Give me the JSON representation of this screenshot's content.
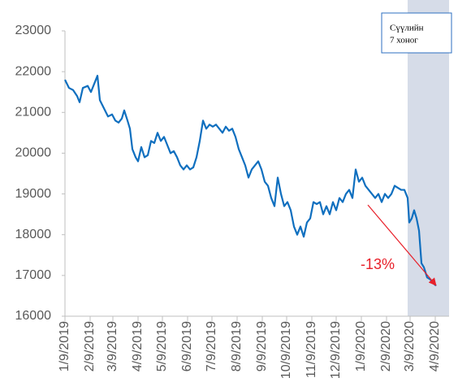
{
  "chart_data": {
    "type": "line",
    "x": [
      "1/9/2019",
      "1/14/2019",
      "1/19/2019",
      "1/24/2019",
      "1/27/2019",
      "1/31/2019",
      "2/6/2019",
      "2/10/2019",
      "2/14/2019",
      "2/18/2019",
      "2/21/2019",
      "2/26/2019",
      "3/3/2019",
      "3/8/2019",
      "3/12/2019",
      "3/16/2019",
      "3/20/2019",
      "3/23/2019",
      "3/27/2019",
      "3/30/2019",
      "4/2/2019",
      "4/6/2019",
      "4/9/2019",
      "4/13/2019",
      "4/17/2019",
      "4/21/2019",
      "4/25/2019",
      "4/29/2019",
      "5/3/2019",
      "5/7/2019",
      "5/11/2019",
      "5/15/2019",
      "5/19/2019",
      "5/23/2019",
      "5/27/2019",
      "5/31/2019",
      "6/4/2019",
      "6/8/2019",
      "6/12/2019",
      "6/16/2019",
      "6/20/2019",
      "6/24/2019",
      "6/28/2019",
      "7/2/2019",
      "7/6/2019",
      "7/10/2019",
      "7/14/2019",
      "7/18/2019",
      "7/22/2019",
      "7/26/2019",
      "7/30/2019",
      "8/3/2019",
      "8/7/2019",
      "8/11/2019",
      "8/15/2019",
      "8/19/2019",
      "8/23/2019",
      "8/27/2019",
      "8/31/2019",
      "9/4/2019",
      "9/8/2019",
      "9/12/2019",
      "9/16/2019",
      "9/20/2019",
      "9/24/2019",
      "9/28/2019",
      "10/2/2019",
      "10/6/2019",
      "10/10/2019",
      "10/14/2019",
      "10/18/2019",
      "10/22/2019",
      "10/26/2019",
      "10/30/2019",
      "11/3/2019",
      "11/7/2019",
      "11/11/2019",
      "11/15/2019",
      "11/19/2019",
      "11/23/2019",
      "11/27/2019",
      "12/1/2019",
      "12/5/2019",
      "12/9/2019",
      "12/13/2019",
      "12/17/2019",
      "12/21/2019",
      "12/25/2019",
      "12/29/2019",
      "1/2/2020",
      "1/6/2020",
      "1/10/2020",
      "1/14/2020",
      "1/18/2020",
      "1/22/2020",
      "1/26/2020",
      "1/30/2020",
      "2/3/2020",
      "2/7/2020",
      "2/11/2020",
      "2/15/2020",
      "2/19/2020",
      "2/23/2020",
      "2/27/2020",
      "3/2/2020",
      "3/6/2020",
      "3/8/2020",
      "3/11/2020",
      "3/14/2020",
      "3/17/2020",
      "3/20/2020",
      "3/23/2020",
      "3/26/2020",
      "3/30/2020",
      "4/3/2020",
      "4/7/2020",
      "4/10/2020"
    ],
    "series": [
      {
        "color": "#0f6fbf",
        "values": [
          21800,
          21600,
          21550,
          21400,
          21250,
          21600,
          21650,
          21500,
          21700,
          21900,
          21300,
          21100,
          20900,
          20950,
          20800,
          20750,
          20850,
          21050,
          20800,
          20600,
          20100,
          19900,
          19800,
          20150,
          19900,
          19950,
          20300,
          20250,
          20500,
          20300,
          20400,
          20200,
          20000,
          20050,
          19900,
          19700,
          19600,
          19700,
          19600,
          19650,
          19900,
          20300,
          20800,
          20600,
          20700,
          20650,
          20700,
          20600,
          20500,
          20650,
          20550,
          20600,
          20400,
          20100,
          19900,
          19700,
          19400,
          19600,
          19700,
          19800,
          19600,
          19300,
          19200,
          18900,
          18700,
          19400,
          19000,
          18700,
          18800,
          18600,
          18200,
          18000,
          18200,
          17950,
          18300,
          18400,
          18800,
          18750,
          18800,
          18500,
          18700,
          18500,
          18800,
          18600,
          18900,
          18800,
          19000,
          19100,
          18900,
          19600,
          19300,
          19400,
          19200,
          19100,
          19000,
          18900,
          19000,
          18800,
          19000,
          18900,
          19000,
          19200,
          19150,
          19100,
          19100,
          18900,
          18300,
          18400,
          18600,
          18400,
          18100,
          17300,
          17200,
          16950,
          16900,
          16800,
          16750
        ]
      }
    ],
    "xlim": [
      "1/9/2019",
      "4/26/2020"
    ],
    "xticks": [
      "1/9/2019",
      "2/9/2019",
      "3/9/2019",
      "4/9/2019",
      "5/9/2019",
      "6/9/2019",
      "7/9/2019",
      "8/9/2019",
      "9/9/2019",
      "10/9/2019",
      "11/9/2019",
      "12/9/2019",
      "1/9/2020",
      "2/9/2020",
      "3/9/2020",
      "4/9/2020"
    ],
    "ylim": [
      16000,
      23000
    ],
    "yticks": [
      16000,
      17000,
      18000,
      19000,
      20000,
      21000,
      22000,
      23000
    ],
    "highlight": {
      "from": "3/6/2020",
      "color": "#d6dce8",
      "label": [
        "Сүүлийн",
        "7 хоног"
      ]
    },
    "arrow": {
      "from": {
        "x": "1/17/2020",
        "y": 18730
      },
      "to": {
        "x": "4/9/2020",
        "y": 16780
      },
      "color": "#e8202a",
      "label": "-13%"
    }
  }
}
